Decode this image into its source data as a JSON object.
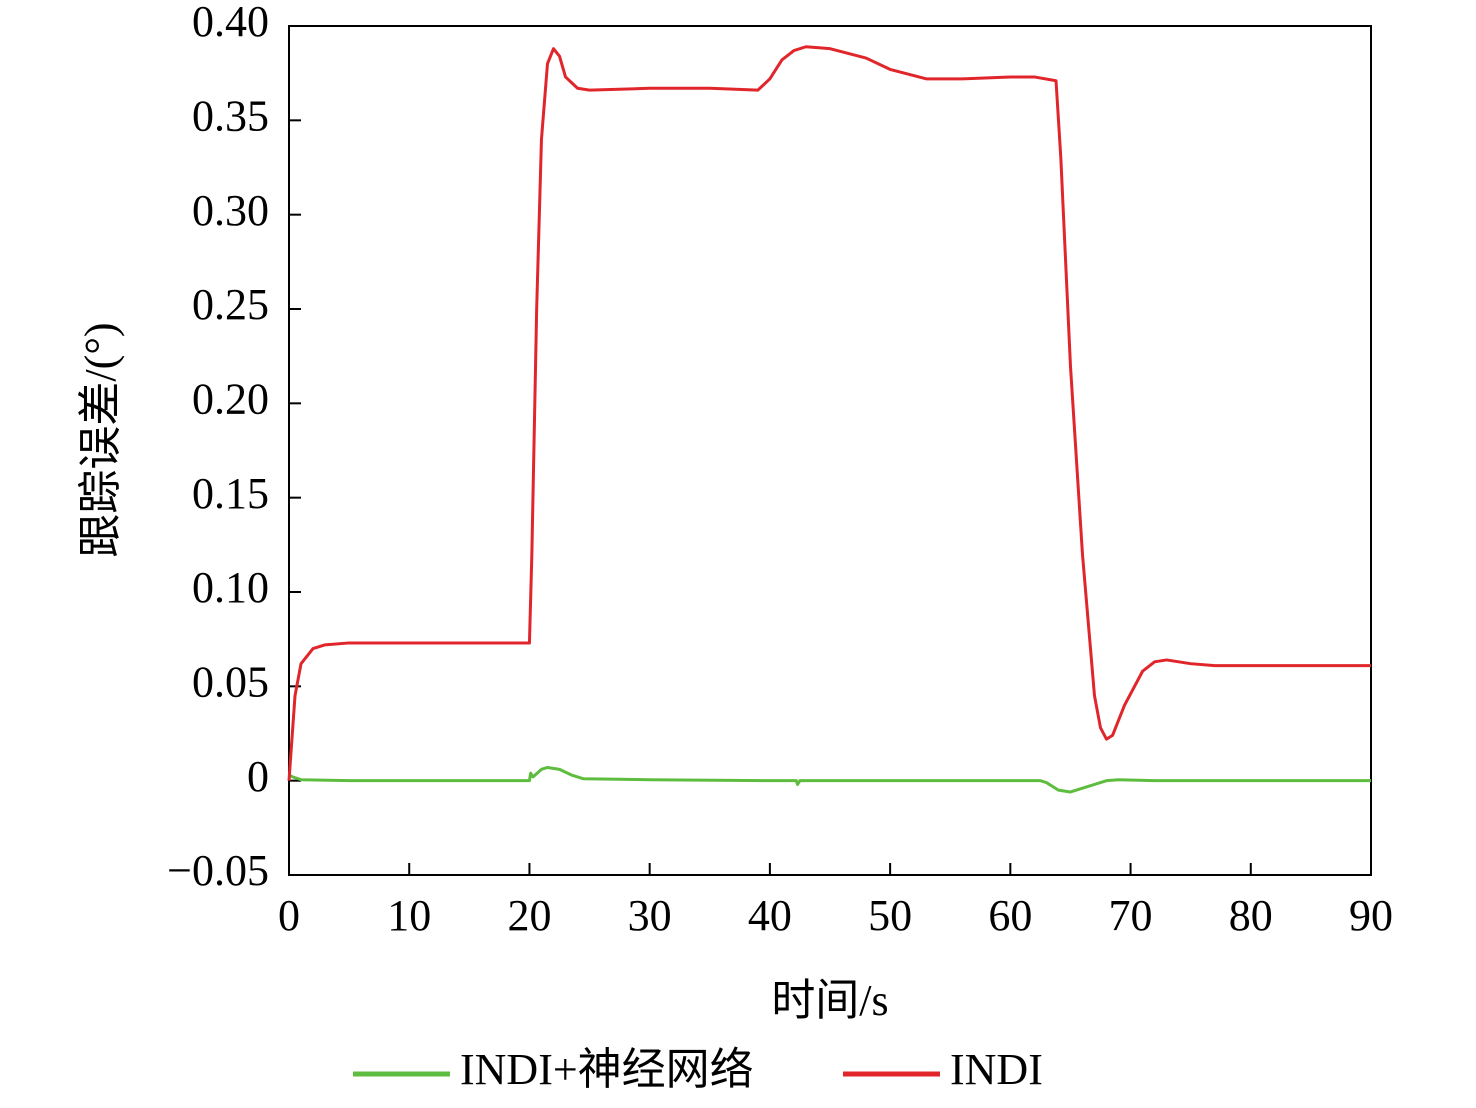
{
  "chart_data": {
    "type": "line",
    "x_label": "时间/s",
    "y_label": "跟踪误差/(°)",
    "xlim": [
      0,
      90
    ],
    "xticks": [
      0,
      10,
      20,
      30,
      40,
      50,
      60,
      70,
      80,
      90
    ],
    "ylim": [
      -0.05,
      0.4
    ],
    "yticks": [
      {
        "value": -0.05,
        "label": "−0.05"
      },
      0,
      0.05,
      {
        "value": 0.1,
        "label": "0.10"
      },
      0.15,
      {
        "value": 0.2,
        "label": "0.20"
      },
      0.25,
      {
        "value": 0.3,
        "label": "0.30"
      },
      0.35,
      {
        "value": 0.4,
        "label": "0.40"
      }
    ],
    "legend": "bottom",
    "series": [
      {
        "name": "INDI+神经网络",
        "color": "#5ebd3e",
        "x": [
          0,
          0.3,
          1,
          5,
          20,
          20.1,
          20.3,
          21,
          21.5,
          22.5,
          23.5,
          24.5,
          30,
          40,
          42.2,
          42.3,
          42.5,
          50,
          62.5,
          63,
          64,
          65,
          66,
          67,
          68,
          69,
          72,
          90
        ],
        "values": [
          0.003,
          0.002,
          0.0005,
          0,
          0,
          0.004,
          0.002,
          0.006,
          0.007,
          0.006,
          0.003,
          0.001,
          0.0005,
          0,
          0,
          -0.002,
          0,
          0,
          0,
          -0.001,
          -0.005,
          -0.006,
          -0.004,
          -0.002,
          0,
          0.0005,
          0,
          0
        ]
      },
      {
        "name": "INDI",
        "color": "#e0262b",
        "x": [
          0,
          0.5,
          1,
          2,
          3,
          5,
          10,
          19.9,
          20,
          20.2,
          20.6,
          21,
          21.5,
          22,
          22.5,
          23,
          24,
          25,
          30,
          35,
          39,
          40,
          41,
          42,
          43,
          45,
          48,
          50,
          53,
          56,
          60,
          62,
          63.8,
          64.2,
          65,
          66,
          67,
          67.5,
          68,
          68.5,
          69.5,
          71,
          72,
          73,
          75,
          77,
          90
        ],
        "values": [
          0,
          0.045,
          0.062,
          0.07,
          0.072,
          0.073,
          0.073,
          0.073,
          0.073,
          0.12,
          0.25,
          0.34,
          0.38,
          0.388,
          0.384,
          0.373,
          0.367,
          0.366,
          0.367,
          0.367,
          0.366,
          0.372,
          0.382,
          0.387,
          0.389,
          0.388,
          0.383,
          0.377,
          0.372,
          0.372,
          0.373,
          0.373,
          0.371,
          0.33,
          0.22,
          0.12,
          0.045,
          0.028,
          0.022,
          0.024,
          0.04,
          0.058,
          0.063,
          0.064,
          0.062,
          0.061,
          0.061
        ]
      }
    ]
  }
}
